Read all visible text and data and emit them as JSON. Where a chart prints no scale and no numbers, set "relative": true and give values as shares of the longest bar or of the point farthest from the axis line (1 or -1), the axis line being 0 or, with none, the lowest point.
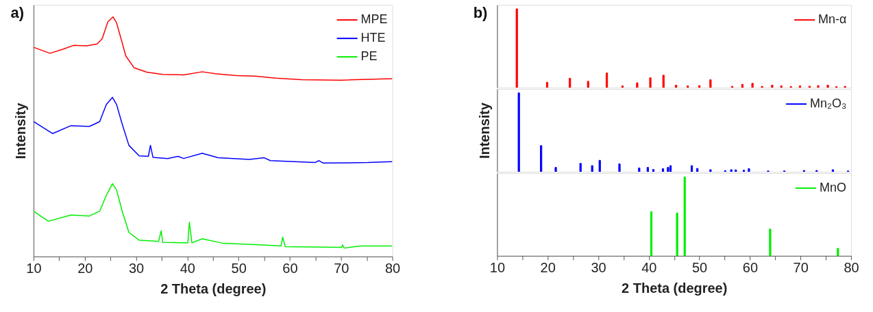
{
  "chart_data": [
    {
      "type": "line",
      "relative": true,
      "xlabel": "2 Theta (degree)",
      "ylabel": "Intensity",
      "annotations": [
        "a)"
      ],
      "legend": "top right",
      "grid": false,
      "tick_labels": "x",
      "xlim": [
        10,
        80
      ],
      "xticks": [
        10,
        {
          "value": 15,
          "label": null
        },
        20,
        {
          "value": 25,
          "label": null
        },
        30,
        {
          "value": 35,
          "label": null
        },
        40,
        {
          "value": 45,
          "label": null
        },
        50,
        {
          "value": 55,
          "label": null
        },
        60,
        {
          "value": 65,
          "label": null
        },
        70,
        {
          "value": 75,
          "label": null
        },
        80
      ],
      "series": [
        {
          "name": "MPE",
          "color": "#ff0000",
          "x": [
            10,
            13.2,
            15.7,
            17.8,
            20.4,
            22.4,
            23.4,
            24.5,
            25.5,
            26.2,
            27.0,
            28.0,
            29.6,
            32.1,
            35.2,
            39.3,
            42.9,
            45.5,
            49.6,
            53.2,
            57.3,
            62.4,
            70.1,
            80
          ],
          "values": [
            0.873,
            0.848,
            0.865,
            0.881,
            0.879,
            0.887,
            0.909,
            0.98,
            1.0,
            0.975,
            0.914,
            0.837,
            0.788,
            0.769,
            0.76,
            0.758,
            0.771,
            0.763,
            0.755,
            0.753,
            0.744,
            0.738,
            0.736,
            0.742
          ]
        },
        {
          "name": "HTE",
          "color": "#0000ff",
          "x": [
            10,
            13.7,
            17.3,
            20.9,
            22.9,
            24.2,
            25.4,
            26.2,
            27.3,
            28.6,
            30.6,
            32.4,
            32.8,
            33.3,
            36.2,
            38.2,
            39.3,
            42.9,
            46.0,
            52.1,
            55.0,
            56.2,
            64.9,
            65.7,
            66.5,
            75.2,
            80
          ],
          "values": [
            0.563,
            0.513,
            0.546,
            0.543,
            0.563,
            0.634,
            0.664,
            0.634,
            0.552,
            0.464,
            0.42,
            0.418,
            0.464,
            0.414,
            0.409,
            0.418,
            0.409,
            0.431,
            0.412,
            0.405,
            0.412,
            0.4,
            0.392,
            0.4,
            0.39,
            0.392,
            0.396
          ]
        },
        {
          "name": "PE",
          "color": "#00ee00",
          "x": [
            10,
            12.9,
            17.3,
            20.9,
            22.9,
            24.2,
            25.4,
            26.2,
            27.3,
            28.6,
            30.6,
            34.4,
            34.9,
            35.2,
            40.1,
            40.4,
            40.9,
            42.9,
            47.0,
            54.7,
            58.3,
            58.6,
            59.1,
            70.1,
            70.3,
            70.6,
            73.8,
            80
          ],
          "values": [
            0.189,
            0.147,
            0.173,
            0.169,
            0.189,
            0.255,
            0.304,
            0.277,
            0.189,
            0.101,
            0.068,
            0.063,
            0.107,
            0.059,
            0.057,
            0.143,
            0.057,
            0.074,
            0.055,
            0.048,
            0.044,
            0.081,
            0.041,
            0.038,
            0.048,
            0.035,
            0.044,
            0.044
          ]
        }
      ]
    },
    {
      "type": "bar",
      "relative": true,
      "annotations": [
        "b)"
      ],
      "legend": "top right",
      "grid": false,
      "tick_labels": false,
      "xlim": [
        10,
        80
      ],
      "series": [
        {
          "name": "Mn-α",
          "color": "#ff0000",
          "x": [
            13.9,
            19.9,
            24.4,
            28.0,
            31.7,
            34.8,
            37.7,
            40.3,
            42.9,
            45.4,
            47.7,
            50.0,
            52.2,
            56.5,
            58.5,
            60.5,
            62.4,
            64.4,
            66.2,
            68.1,
            69.9,
            71.8,
            73.5,
            75.4,
            77.1,
            78.8
          ],
          "values": [
            1.0,
            0.068,
            0.119,
            0.08,
            0.186,
            0.023,
            0.061,
            0.125,
            0.158,
            0.032,
            0.023,
            0.026,
            0.1,
            0.016,
            0.042,
            0.055,
            0.016,
            0.032,
            0.023,
            0.013,
            0.023,
            0.019,
            0.026,
            0.032,
            0.013,
            0.016
          ]
        }
      ]
    },
    {
      "type": "bar",
      "relative": true,
      "ylabel": "Intensity",
      "legend": "top right",
      "grid": false,
      "tick_labels": false,
      "xlim": [
        10,
        80
      ],
      "series": [
        {
          "name": "Mn₂O₃",
          "color": "#0000ff",
          "x": [
            14.3,
            18.7,
            21.6,
            26.5,
            28.8,
            30.3,
            34.2,
            38.1,
            39.8,
            40.9,
            42.8,
            43.8,
            44.3,
            48.5,
            49.6,
            52.2,
            55.1,
            56.3,
            57.2,
            58.8,
            59.8,
            63.6,
            66.8,
            70.7,
            73.2,
            76.4,
            79.4
          ],
          "values": [
            1.0,
            0.331,
            0.055,
            0.106,
            0.077,
            0.145,
            0.1,
            0.048,
            0.055,
            0.029,
            0.039,
            0.055,
            0.077,
            0.077,
            0.042,
            0.026,
            0.013,
            0.026,
            0.023,
            0.019,
            0.039,
            0.01,
            0.01,
            0.016,
            0.016,
            0.026,
            0.01
          ]
        }
      ]
    },
    {
      "type": "bar",
      "relative": true,
      "xlabel": "2 Theta (degree)",
      "legend": "top right",
      "grid": false,
      "tick_labels": "x",
      "xlim": [
        10,
        80
      ],
      "xticks": [
        10,
        {
          "value": 15,
          "label": null
        },
        20,
        {
          "value": 25,
          "label": null
        },
        30,
        {
          "value": 35,
          "label": null
        },
        40,
        {
          "value": 45,
          "label": null
        },
        50,
        {
          "value": 55,
          "label": null
        },
        60,
        {
          "value": 65,
          "label": null
        },
        70,
        {
          "value": 75,
          "label": null
        },
        80
      ],
      "series": [
        {
          "name": "MnO",
          "color": "#00ee00",
          "x": [
            40.5,
            45.6,
            47.1,
            64.0,
            77.4
          ],
          "values": [
            0.561,
            0.544,
            1.0,
            0.34,
            0.095
          ]
        }
      ]
    }
  ]
}
